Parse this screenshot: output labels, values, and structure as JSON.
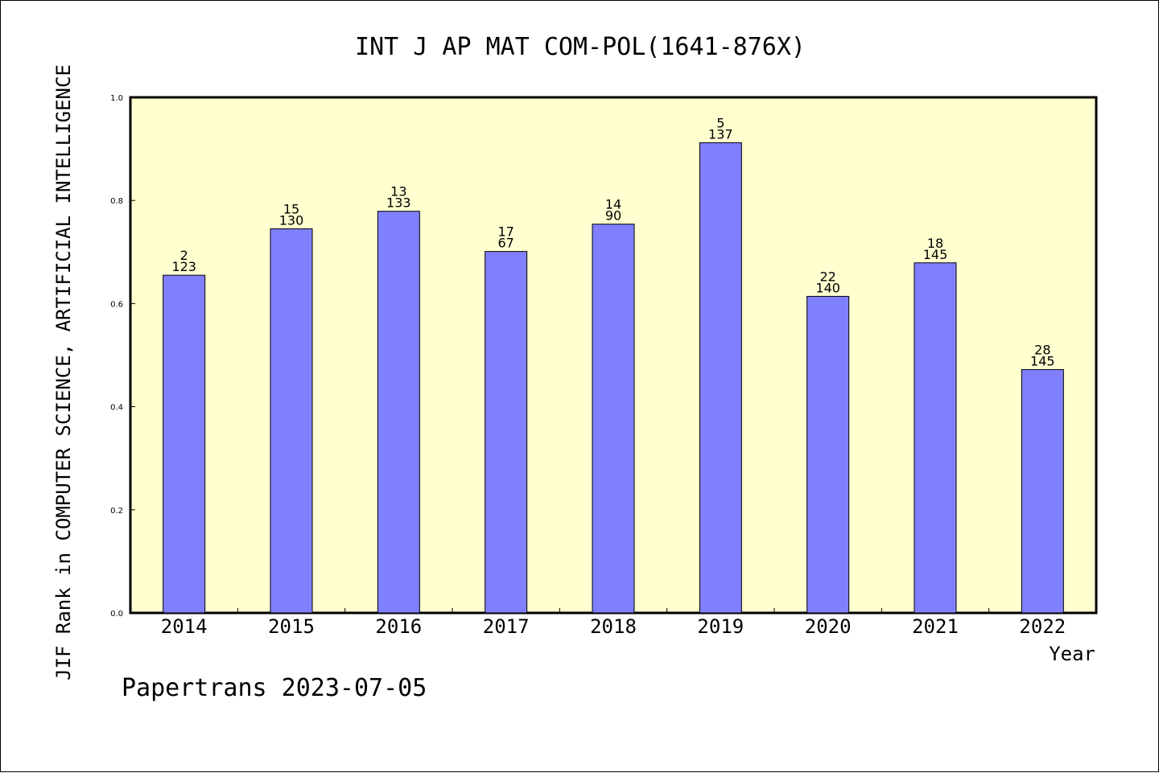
{
  "chart_data": {
    "type": "bar",
    "title": "INT J AP MAT COM-POL(1641-876X)",
    "xlabel": "Year",
    "ylabel": "JIF Rank in COMPUTER SCIENCE, ARTIFICIAL INTELLIGENCE",
    "ylim": [
      0,
      1.0
    ],
    "yticks": [
      "0.0",
      "0.2",
      "0.4",
      "0.6",
      "0.8",
      "1.0"
    ],
    "categories": [
      "2014",
      "2015",
      "2016",
      "2017",
      "2018",
      "2019",
      "2020",
      "2021",
      "2022"
    ],
    "values": [
      0.655,
      0.745,
      0.779,
      0.701,
      0.754,
      0.912,
      0.614,
      0.679,
      0.472
    ],
    "labels": [
      {
        "rank": "2",
        "total": "123"
      },
      {
        "rank": "15",
        "total": "130"
      },
      {
        "rank": "13",
        "total": "133"
      },
      {
        "rank": "17",
        "total": "67"
      },
      {
        "rank": "14",
        "total": "90"
      },
      {
        "rank": "5",
        "total": "137"
      },
      {
        "rank": "22",
        "total": "140"
      },
      {
        "rank": "18",
        "total": "145"
      },
      {
        "rank": "28",
        "total": "145"
      }
    ],
    "grid": false,
    "colors": {
      "bar": "#8080ff",
      "plot_background": "#ffffd0"
    }
  },
  "footer": "Papertrans 2023-07-05"
}
